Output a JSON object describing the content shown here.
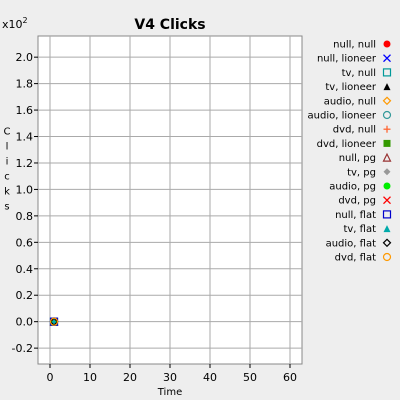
{
  "chart_data": {
    "type": "scatter",
    "title": "V4 Clicks",
    "xlabel": "Time",
    "ylabel": "Clicks",
    "y_multiplier_label": "x10",
    "y_multiplier_exponent": "2",
    "xlim": [
      -3,
      63
    ],
    "ylim": [
      -0.32,
      2.16
    ],
    "x_ticks": [
      0,
      10,
      20,
      30,
      40,
      50,
      60
    ],
    "x_tick_labels": [
      "0",
      "10",
      "20",
      "30",
      "40",
      "50",
      "60"
    ],
    "y_ticks": [
      -0.2,
      0.0,
      0.2,
      0.4,
      0.6,
      0.8,
      1.0,
      1.2,
      1.4,
      1.6,
      1.8,
      2.0
    ],
    "y_tick_labels": [
      "-0.2",
      "0.0",
      "0.2",
      "0.4",
      "0.6",
      "0.8",
      "1.0",
      "1.2",
      "1.4",
      "1.6",
      "1.8",
      "2.0"
    ],
    "grid": true,
    "legend_position": "right",
    "series": [
      {
        "name": "null, null",
        "marker": "circle-filled",
        "color": "#ff0000",
        "points": [
          [
            1,
            0
          ]
        ]
      },
      {
        "name": "null, lioneer",
        "marker": "x",
        "color": "#0000ff",
        "points": [
          [
            1,
            0
          ]
        ]
      },
      {
        "name": "tv, null",
        "marker": "square-open",
        "color": "#009999",
        "points": [
          [
            1,
            0
          ]
        ]
      },
      {
        "name": "tv, lioneer",
        "marker": "triangle-filled",
        "color": "#000000",
        "points": [
          [
            1,
            0
          ]
        ]
      },
      {
        "name": "audio, null",
        "marker": "diamond-open",
        "color": "#ff9900",
        "points": [
          [
            1,
            0
          ]
        ]
      },
      {
        "name": "audio, lioneer",
        "marker": "circle-open",
        "color": "#339999",
        "points": [
          [
            1,
            0
          ]
        ]
      },
      {
        "name": "dvd, null",
        "marker": "plus",
        "color": "#ff6633",
        "points": [
          [
            1,
            0
          ]
        ]
      },
      {
        "name": "dvd, lioneer",
        "marker": "square-filled",
        "color": "#339900",
        "points": [
          [
            1,
            0
          ]
        ]
      },
      {
        "name": "null, pg",
        "marker": "triangle-open",
        "color": "#993333",
        "points": [
          [
            1,
            0
          ]
        ]
      },
      {
        "name": "tv, pg",
        "marker": "diamond-filled",
        "color": "#999999",
        "points": [
          [
            1,
            0
          ]
        ]
      },
      {
        "name": "audio, pg",
        "marker": "circle-filled",
        "color": "#00ee00",
        "points": [
          [
            1,
            0
          ]
        ]
      },
      {
        "name": "dvd, pg",
        "marker": "x",
        "color": "#ff0000",
        "points": [
          [
            1,
            0
          ]
        ]
      },
      {
        "name": "null, flat",
        "marker": "square-open",
        "color": "#0000cc",
        "points": [
          [
            1,
            0
          ]
        ]
      },
      {
        "name": "tv, flat",
        "marker": "triangle-filled",
        "color": "#00aaaa",
        "points": [
          [
            1,
            0
          ]
        ]
      },
      {
        "name": "audio, flat",
        "marker": "diamond-open",
        "color": "#000000",
        "points": [
          [
            1,
            0
          ]
        ]
      },
      {
        "name": "dvd, flat",
        "marker": "circle-open",
        "color": "#ff9900",
        "points": [
          [
            1,
            0
          ]
        ]
      }
    ]
  }
}
